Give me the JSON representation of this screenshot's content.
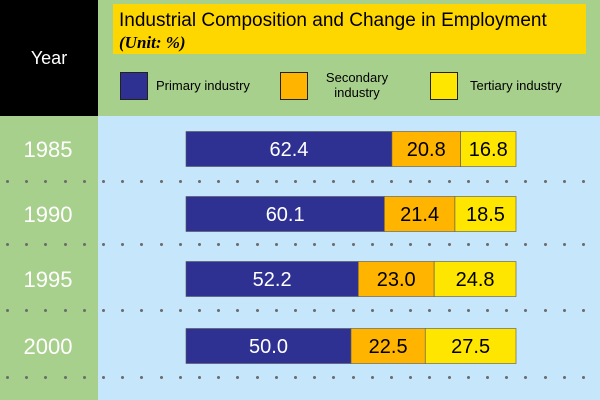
{
  "header": {
    "year_label": "Year"
  },
  "title": {
    "main": "Industrial Composition and Change in Employment",
    "unit": "(Unit: %)"
  },
  "legend": [
    {
      "label": "Primary industry",
      "color": "#2e3192"
    },
    {
      "label": "Secondary industry",
      "color": "#ffb400"
    },
    {
      "label": "Tertiary industry",
      "color": "#ffe600"
    }
  ],
  "colors": {
    "background": "#a8d08d",
    "plot": "#c5e6fb",
    "title_box": "#ffd700",
    "year_header": "#000000"
  },
  "chart_data": {
    "type": "bar",
    "orientation": "horizontal",
    "stacked": true,
    "title": "Industrial Composition and Change in Employment",
    "subtitle": "(Unit: %)",
    "categories": [
      "1985",
      "1990",
      "1995",
      "2000"
    ],
    "series": [
      {
        "name": "Primary industry",
        "values": [
          62.4,
          60.1,
          52.2,
          50.0
        ],
        "labels": [
          "62.4",
          "60.1",
          "52.2",
          "50.0"
        ]
      },
      {
        "name": "Secondary industry",
        "values": [
          20.8,
          21.4,
          23.0,
          22.5
        ],
        "labels": [
          "20.8",
          "21.4",
          "23.0",
          "22.5"
        ]
      },
      {
        "name": "Tertiary industry",
        "values": [
          16.8,
          18.5,
          24.8,
          27.5
        ],
        "labels": [
          "16.8",
          "18.5",
          "24.8",
          "27.5"
        ]
      }
    ],
    "xlim": [
      0,
      100
    ],
    "grid": false,
    "legend_position": "top"
  }
}
